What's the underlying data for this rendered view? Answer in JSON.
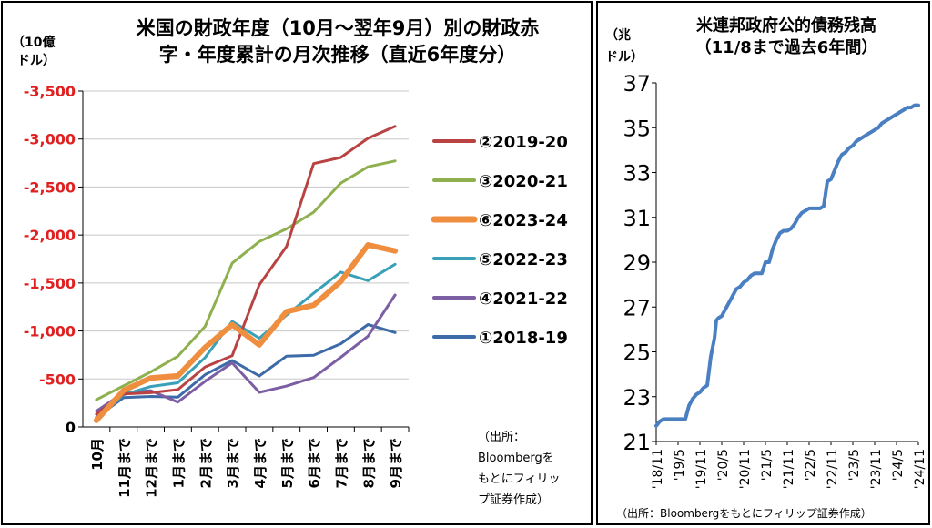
{
  "left": {
    "title_line1": "米国の財政年度（10月～翌年9月）別の財政赤",
    "title_line2": "字・年度累計の月次推移（直近6年度分）",
    "unit_line1": "（10億",
    "unit_line2": "ドル）",
    "source_lines": [
      "（出所：",
      "Bloombergを",
      "もとにフィリッ",
      "プ証券作成）"
    ]
  },
  "right": {
    "title_line1": "米連邦政府公的債務残高",
    "title_line2": "（11/8まで過去6年間）",
    "unit_line1": "（兆",
    "unit_line2": "ドル）",
    "source": "（出所：Bloombergをもとにフィリップ証券作成）"
  },
  "chart_data": [
    {
      "type": "line",
      "title": "米国の財政年度（10月～翌年9月）別の財政赤字・年度累計の月次推移（直近6年度分）",
      "ylabel": "（10億ドル）",
      "ylim": [
        0,
        -3500
      ],
      "y_inverted": true,
      "yticks": [
        0,
        -500,
        -1000,
        -1500,
        -2000,
        -2500,
        -3000,
        -3500
      ],
      "ytick_labels": [
        "0",
        "-500",
        "-1,000",
        "-1,500",
        "-2,000",
        "-2,500",
        "-3,000",
        "-3,500"
      ],
      "categories": [
        "10月",
        "11月まで",
        "12月まで",
        "1月まで",
        "2月まで",
        "3月まで",
        "4月まで",
        "5月まで",
        "6月まで",
        "7月まで",
        "8月まで",
        "9月まで"
      ],
      "series": [
        {
          "name": "②2019-20",
          "color": "#b94342",
          "width": 3,
          "values": [
            -134,
            -343,
            -357,
            -389,
            -625,
            -743,
            -1481,
            -1880,
            -2744,
            -2808,
            -3008,
            -3132
          ]
        },
        {
          "name": "③2020-21",
          "color": "#8fb04f",
          "width": 3,
          "values": [
            -284,
            -429,
            -573,
            -736,
            -1047,
            -1706,
            -1932,
            -2064,
            -2238,
            -2540,
            -2711,
            -2772
          ]
        },
        {
          "name": "⑥2023-24",
          "color": "#ef8e3e",
          "width": 6,
          "values": [
            -67,
            -380,
            -510,
            -532,
            -828,
            -1065,
            -855,
            -1202,
            -1269,
            -1516,
            -1897,
            -1833
          ]
        },
        {
          "name": "⑤2022-23",
          "color": "#39a0b8",
          "width": 3,
          "values": [
            -88,
            -336,
            -421,
            -460,
            -723,
            -1100,
            -925,
            -1165,
            -1393,
            -1613,
            -1524,
            -1695
          ]
        },
        {
          "name": "④2021-22",
          "color": "#7c5ea3",
          "width": 3,
          "values": [
            -165,
            -357,
            -378,
            -259,
            -475,
            -668,
            -360,
            -426,
            -515,
            -726,
            -946,
            -1375
          ]
        },
        {
          "name": "①2018-19",
          "color": "#3d6ba8",
          "width": 3,
          "values": [
            -100,
            -305,
            -318,
            -310,
            -544,
            -691,
            -531,
            -738,
            -747,
            -867,
            -1067,
            -984
          ]
        }
      ],
      "legend": "right"
    },
    {
      "type": "line",
      "title": "米連邦政府公的債務残高（11/8まで過去6年間）",
      "ylabel": "（兆ドル）",
      "ylim": [
        21,
        37
      ],
      "yticks": [
        21,
        23,
        25,
        27,
        29,
        31,
        33,
        35,
        37
      ],
      "xtick_labels": [
        "'18/11",
        "'19/5",
        "'19/11",
        "'20/5",
        "'20/11",
        "'21/5",
        "'21/11",
        "'22/5",
        "'22/11",
        "'23/5",
        "'23/11",
        "'24/5",
        "'24/11"
      ],
      "x_units": "months since 2018/11",
      "series": [
        {
          "color": "#4a7fc1",
          "x": [
            0,
            1,
            2,
            3,
            4,
            5,
            6,
            7,
            8,
            9,
            10,
            11,
            12,
            13,
            14,
            15,
            16,
            16.5,
            17,
            18,
            19,
            20,
            21,
            22,
            23,
            24,
            25,
            26,
            27,
            28,
            29,
            30,
            31,
            32,
            33,
            34,
            35,
            36,
            37,
            38,
            39,
            40,
            41,
            42,
            43,
            44,
            45,
            46,
            47,
            48,
            49,
            50,
            51,
            52,
            53,
            54,
            55,
            56,
            57,
            58,
            59,
            60,
            61,
            62,
            63,
            64,
            65,
            66,
            67,
            68,
            69,
            70,
            71,
            72
          ],
          "y": [
            21.7,
            21.9,
            22.0,
            22.0,
            22.0,
            22.0,
            22.0,
            22.0,
            22.0,
            22.6,
            22.9,
            23.1,
            23.2,
            23.4,
            23.5,
            24.8,
            25.6,
            26.4,
            26.5,
            26.6,
            26.9,
            27.2,
            27.5,
            27.8,
            27.9,
            28.1,
            28.2,
            28.4,
            28.5,
            28.5,
            28.5,
            29.0,
            29.0,
            29.6,
            30.0,
            30.3,
            30.4,
            30.4,
            30.5,
            30.7,
            31.0,
            31.2,
            31.3,
            31.4,
            31.4,
            31.4,
            31.4,
            31.5,
            32.6,
            32.7,
            33.1,
            33.5,
            33.8,
            33.9,
            34.1,
            34.2,
            34.4,
            34.5,
            34.6,
            34.7,
            34.8,
            34.9,
            35.0,
            35.2,
            35.3,
            35.4,
            35.5,
            35.6,
            35.7,
            35.8,
            35.9,
            35.9,
            36.0,
            36.0
          ]
        }
      ]
    }
  ]
}
